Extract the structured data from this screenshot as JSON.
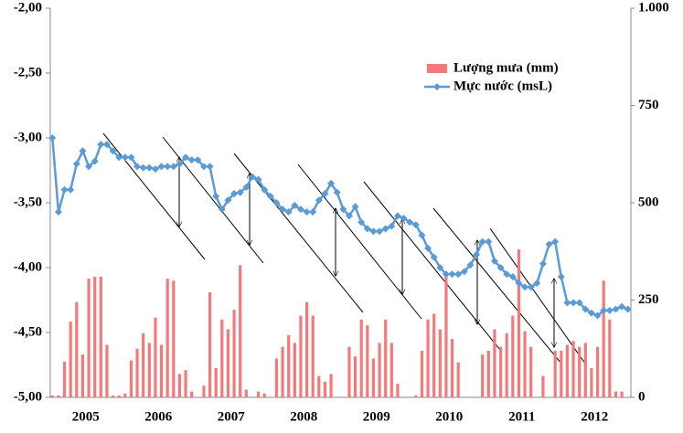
{
  "chart_data": {
    "type": "combo",
    "categories": [
      null,
      null,
      null,
      null,
      null,
      null,
      "2005",
      null,
      null,
      null,
      null,
      null,
      null,
      null,
      null,
      null,
      null,
      null,
      "2006",
      null,
      null,
      null,
      null,
      null,
      null,
      null,
      null,
      null,
      null,
      null,
      "2007",
      null,
      null,
      null,
      null,
      null,
      null,
      null,
      null,
      null,
      null,
      null,
      "2008",
      null,
      null,
      null,
      null,
      null,
      null,
      null,
      null,
      null,
      null,
      null,
      "2009",
      null,
      null,
      null,
      null,
      null,
      null,
      null,
      null,
      null,
      null,
      null,
      "2010",
      null,
      null,
      null,
      null,
      null,
      null,
      null,
      null,
      null,
      null,
      null,
      "2011",
      null,
      null,
      null,
      null,
      null,
      null,
      null,
      null,
      null,
      null,
      null,
      "2012",
      null,
      null,
      null,
      null,
      null
    ],
    "series": [
      {
        "name": "Lượng mưa (mm)",
        "type": "bar",
        "axis": "y2",
        "color": "#f4797b",
        "values": [
          5,
          5,
          92,
          195,
          245,
          110,
          305,
          310,
          310,
          135,
          5,
          5,
          10,
          95,
          125,
          165,
          140,
          205,
          135,
          305,
          300,
          60,
          70,
          15,
          0,
          30,
          270,
          75,
          200,
          175,
          225,
          340,
          20,
          0,
          15,
          10,
          0,
          100,
          130,
          160,
          140,
          210,
          245,
          210,
          55,
          40,
          60,
          0,
          0,
          130,
          105,
          200,
          185,
          100,
          140,
          200,
          140,
          35,
          0,
          0,
          5,
          120,
          200,
          215,
          175,
          310,
          150,
          90,
          0,
          0,
          0,
          110,
          120,
          175,
          130,
          165,
          210,
          380,
          170,
          130,
          0,
          55,
          0,
          120,
          120,
          135,
          145,
          130,
          140,
          75,
          130,
          300,
          200,
          15,
          15,
          0
        ]
      },
      {
        "name": "Mực nước (msL)",
        "type": "line",
        "color": "#5b9bd5",
        "values": [
          -3.0,
          -3.57,
          -3.4,
          -3.4,
          -3.2,
          -3.1,
          -3.22,
          -3.18,
          -3.05,
          -3.05,
          -3.1,
          -3.15,
          -3.15,
          -3.15,
          -3.22,
          -3.23,
          -3.23,
          -3.24,
          -3.22,
          -3.22,
          -3.22,
          -3.2,
          -3.15,
          -3.17,
          -3.17,
          -3.22,
          -3.22,
          -3.45,
          -3.55,
          -3.48,
          -3.43,
          -3.42,
          -3.38,
          -3.3,
          -3.32,
          -3.4,
          -3.45,
          -3.5,
          -3.55,
          -3.57,
          -3.52,
          -3.55,
          -3.57,
          -3.57,
          -3.48,
          -3.43,
          -3.35,
          -3.42,
          -3.55,
          -3.6,
          -3.53,
          -3.65,
          -3.7,
          -3.72,
          -3.72,
          -3.7,
          -3.68,
          -3.6,
          -3.62,
          -3.65,
          -3.67,
          -3.75,
          -3.85,
          -3.92,
          -4.0,
          -4.05,
          -4.05,
          -4.05,
          -4.03,
          -3.98,
          -3.9,
          -3.8,
          -3.8,
          -3.95,
          -4.0,
          -4.05,
          -4.07,
          -4.12,
          -4.15,
          -4.15,
          -4.12,
          -3.97,
          -3.82,
          -3.8,
          -4.07,
          -4.27,
          -4.27,
          -4.27,
          -4.32,
          -4.35,
          -4.37,
          -4.33,
          -4.33,
          -4.32,
          -4.3,
          -4.32
        ]
      }
    ],
    "ylim": [
      -5,
      -2
    ],
    "yticks": [
      {
        "value": -5,
        "label": "-5,00"
      },
      {
        "value": -4.5,
        "label": "-4,50"
      },
      {
        "value": -4,
        "label": "-4,00"
      },
      {
        "value": -3.5,
        "label": "-3,50"
      },
      {
        "value": -3,
        "label": "-3,00"
      },
      {
        "value": -2.5,
        "label": "-2,50"
      },
      {
        "value": -2,
        "label": "-2,00"
      }
    ],
    "y2lim": [
      0,
      1000
    ],
    "y2ticks": [
      0,
      250,
      500,
      750,
      {
        "value": 1000,
        "label": "1.000"
      }
    ]
  }
}
